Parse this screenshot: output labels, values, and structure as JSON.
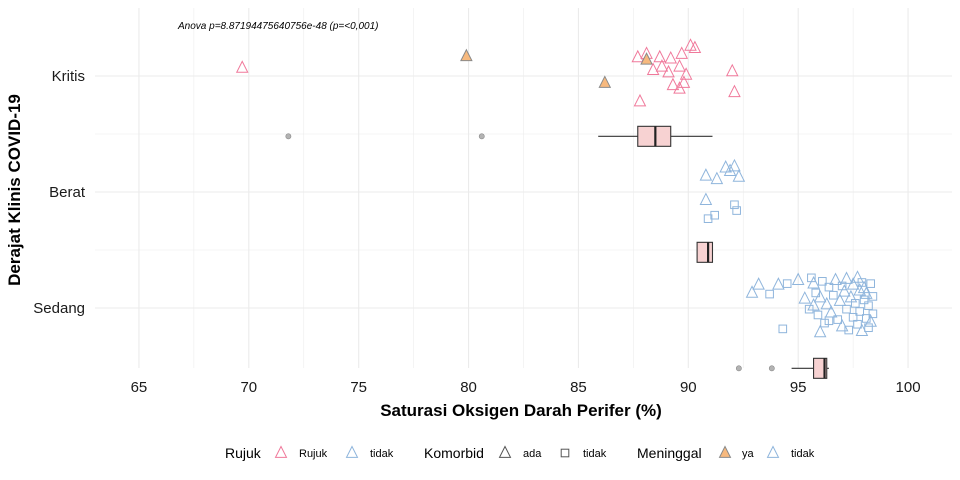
{
  "chart_data": {
    "type": "scatter",
    "xlabel": "Saturasi Oksigen Darah Perifer (%)",
    "ylabel": "Derajat Klinis COVID-19",
    "xlim": [
      63,
      102
    ],
    "x_ticks": [
      65,
      70,
      75,
      80,
      85,
      90,
      95,
      100
    ],
    "x_tick_labels": [
      "65",
      "70",
      "75",
      "80",
      "85",
      "90",
      "95",
      "100"
    ],
    "categories": [
      "Kritis",
      "Berat",
      "Sedang"
    ],
    "grid": true,
    "legend_position": "bottom",
    "annotation": "Anova p=8.87194475640756e-48 (p=<0,001)",
    "colors": {
      "rujuk": "#f0799b",
      "tidak_rujuk": "#8fb5dc",
      "ya_fill": "#f7b97e",
      "box_fill": "#f7d2d2",
      "outlier": "#b3b3b3",
      "grid": "#ebebeb"
    },
    "legend": {
      "rujuk": {
        "title": "Rujuk",
        "items": [
          "Rujuk",
          "tidak"
        ]
      },
      "komorbid": {
        "title": "Komorbid",
        "items": [
          "ada",
          "tidak"
        ]
      },
      "meninggal": {
        "title": "Meninggal",
        "items": [
          "ya",
          "tidak"
        ]
      }
    },
    "boxplots": [
      {
        "category": "Kritis",
        "min": 85.9,
        "q1": 87.7,
        "median": 88.5,
        "q3": 89.2,
        "max": 91.1,
        "outliers": [
          71.8,
          80.6
        ]
      },
      {
        "category": "Berat",
        "min": 90.4,
        "q1": 90.4,
        "median": 90.9,
        "q3": 91.1,
        "max": 91.1,
        "outliers": []
      },
      {
        "category": "Sedang",
        "min": 94.7,
        "q1": 95.7,
        "median": 96.2,
        "q3": 96.3,
        "max": 96.4,
        "outliers": [
          92.3,
          93.8
        ]
      }
    ],
    "points": [
      {
        "category": "Kritis",
        "x": 69.7,
        "offset": 0.07,
        "rujuk": "Rujuk",
        "komorbid": "ada",
        "meninggal": "tidak"
      },
      {
        "category": "Kritis",
        "x": 79.9,
        "offset": 0.17,
        "rujuk": "Rujuk",
        "komorbid": "ada",
        "meninggal": "ya"
      },
      {
        "category": "Kritis",
        "x": 86.2,
        "offset": -0.06,
        "rujuk": "Rujuk",
        "komorbid": "ada",
        "meninggal": "ya"
      },
      {
        "category": "Kritis",
        "x": 87.7,
        "offset": 0.16,
        "rujuk": "Rujuk",
        "komorbid": "ada",
        "meninggal": "tidak"
      },
      {
        "category": "Kritis",
        "x": 88.1,
        "offset": 0.19,
        "rujuk": "Rujuk",
        "komorbid": "ada",
        "meninggal": "tidak"
      },
      {
        "category": "Kritis",
        "x": 88.1,
        "offset": 0.14,
        "rujuk": "Rujuk",
        "komorbid": "ada",
        "meninggal": "ya"
      },
      {
        "category": "Kritis",
        "x": 88.7,
        "offset": 0.16,
        "rujuk": "Rujuk",
        "komorbid": "ada",
        "meninggal": "tidak"
      },
      {
        "category": "Kritis",
        "x": 89.2,
        "offset": 0.15,
        "rujuk": "Rujuk",
        "komorbid": "ada",
        "meninggal": "tidak"
      },
      {
        "category": "Kritis",
        "x": 89.7,
        "offset": 0.19,
        "rujuk": "Rujuk",
        "komorbid": "ada",
        "meninggal": "tidak"
      },
      {
        "category": "Kritis",
        "x": 90.1,
        "offset": 0.26,
        "rujuk": "Rujuk",
        "komorbid": "ada",
        "meninggal": "tidak"
      },
      {
        "category": "Kritis",
        "x": 90.3,
        "offset": 0.24,
        "rujuk": "Rujuk",
        "komorbid": "ada",
        "meninggal": "tidak"
      },
      {
        "category": "Kritis",
        "x": 88.4,
        "offset": 0.05,
        "rujuk": "Rujuk",
        "komorbid": "ada",
        "meninggal": "tidak"
      },
      {
        "category": "Kritis",
        "x": 88.8,
        "offset": 0.08,
        "rujuk": "Rujuk",
        "komorbid": "ada",
        "meninggal": "tidak"
      },
      {
        "category": "Kritis",
        "x": 89.1,
        "offset": 0.03,
        "rujuk": "Rujuk",
        "komorbid": "ada",
        "meninggal": "tidak"
      },
      {
        "category": "Kritis",
        "x": 89.6,
        "offset": 0.08,
        "rujuk": "Rujuk",
        "komorbid": "ada",
        "meninggal": "tidak"
      },
      {
        "category": "Kritis",
        "x": 89.9,
        "offset": 0.01,
        "rujuk": "Rujuk",
        "komorbid": "ada",
        "meninggal": "tidak"
      },
      {
        "category": "Kritis",
        "x": 89.3,
        "offset": -0.08,
        "rujuk": "Rujuk",
        "komorbid": "ada",
        "meninggal": "tidak"
      },
      {
        "category": "Kritis",
        "x": 89.6,
        "offset": -0.11,
        "rujuk": "Rujuk",
        "komorbid": "ada",
        "meninggal": "tidak"
      },
      {
        "category": "Kritis",
        "x": 89.8,
        "offset": -0.06,
        "rujuk": "Rujuk",
        "komorbid": "ada",
        "meninggal": "tidak"
      },
      {
        "category": "Kritis",
        "x": 87.8,
        "offset": -0.22,
        "rujuk": "Rujuk",
        "komorbid": "ada",
        "meninggal": "tidak"
      },
      {
        "category": "Kritis",
        "x": 92.0,
        "offset": 0.04,
        "rujuk": "Rujuk",
        "komorbid": "ada",
        "meninggal": "tidak"
      },
      {
        "category": "Kritis",
        "x": 92.1,
        "offset": -0.14,
        "rujuk": "Rujuk",
        "komorbid": "ada",
        "meninggal": "tidak"
      },
      {
        "category": "Berat",
        "x": 90.8,
        "offset": 0.14,
        "rujuk": "tidak",
        "komorbid": "ada",
        "meninggal": "tidak"
      },
      {
        "category": "Berat",
        "x": 91.3,
        "offset": 0.11,
        "rujuk": "tidak",
        "komorbid": "ada",
        "meninggal": "tidak"
      },
      {
        "category": "Berat",
        "x": 91.7,
        "offset": 0.21,
        "rujuk": "tidak",
        "komorbid": "ada",
        "meninggal": "tidak"
      },
      {
        "category": "Berat",
        "x": 91.9,
        "offset": 0.18,
        "rujuk": "tidak",
        "komorbid": "ada",
        "meninggal": "tidak"
      },
      {
        "category": "Berat",
        "x": 92.1,
        "offset": 0.22,
        "rujuk": "tidak",
        "komorbid": "ada",
        "meninggal": "tidak"
      },
      {
        "category": "Berat",
        "x": 92.3,
        "offset": 0.13,
        "rujuk": "tidak",
        "komorbid": "ada",
        "meninggal": "tidak"
      },
      {
        "category": "Berat",
        "x": 90.8,
        "offset": -0.07,
        "rujuk": "tidak",
        "komorbid": "ada",
        "meninggal": "tidak"
      },
      {
        "category": "Berat",
        "x": 90.9,
        "offset": -0.23,
        "rujuk": "tidak",
        "komorbid": "tidak",
        "meninggal": "tidak"
      },
      {
        "category": "Berat",
        "x": 91.2,
        "offset": -0.2,
        "rujuk": "tidak",
        "komorbid": "tidak",
        "meninggal": "tidak"
      },
      {
        "category": "Berat",
        "x": 92.1,
        "offset": -0.11,
        "rujuk": "tidak",
        "komorbid": "tidak",
        "meninggal": "tidak"
      },
      {
        "category": "Berat",
        "x": 92.2,
        "offset": -0.16,
        "rujuk": "tidak",
        "komorbid": "tidak",
        "meninggal": "tidak"
      },
      {
        "category": "Sedang",
        "x": 93.2,
        "offset": 0.2,
        "rujuk": "tidak",
        "komorbid": "ada",
        "meninggal": "tidak"
      },
      {
        "category": "Sedang",
        "x": 92.9,
        "offset": 0.13,
        "rujuk": "tidak",
        "komorbid": "ada",
        "meninggal": "tidak"
      },
      {
        "category": "Sedang",
        "x": 93.7,
        "offset": 0.12,
        "rujuk": "tidak",
        "komorbid": "tidak",
        "meninggal": "tidak"
      },
      {
        "category": "Sedang",
        "x": 94.1,
        "offset": 0.2,
        "rujuk": "tidak",
        "komorbid": "ada",
        "meninggal": "tidak"
      },
      {
        "category": "Sedang",
        "x": 94.5,
        "offset": 0.21,
        "rujuk": "tidak",
        "komorbid": "tidak",
        "meninggal": "tidak"
      },
      {
        "category": "Sedang",
        "x": 94.3,
        "offset": -0.18,
        "rujuk": "tidak",
        "komorbid": "tidak",
        "meninggal": "tidak"
      },
      {
        "category": "Sedang",
        "x": 95.0,
        "offset": 0.24,
        "rujuk": "tidak",
        "komorbid": "ada",
        "meninggal": "tidak"
      },
      {
        "category": "Sedang",
        "x": 95.3,
        "offset": 0.08,
        "rujuk": "tidak",
        "komorbid": "ada",
        "meninggal": "tidak"
      },
      {
        "category": "Sedang",
        "x": 95.6,
        "offset": 0.26,
        "rujuk": "tidak",
        "komorbid": "tidak",
        "meninggal": "tidak"
      },
      {
        "category": "Sedang",
        "x": 95.7,
        "offset": 0.21,
        "rujuk": "tidak",
        "komorbid": "ada",
        "meninggal": "tidak"
      },
      {
        "category": "Sedang",
        "x": 95.7,
        "offset": 0.02,
        "rujuk": "tidak",
        "komorbid": "ada",
        "meninggal": "tidak"
      },
      {
        "category": "Sedang",
        "x": 95.8,
        "offset": 0.13,
        "rujuk": "tidak",
        "komorbid": "tidak",
        "meninggal": "tidak"
      },
      {
        "category": "Sedang",
        "x": 95.9,
        "offset": -0.06,
        "rujuk": "tidak",
        "komorbid": "tidak",
        "meninggal": "tidak"
      },
      {
        "category": "Sedang",
        "x": 96.0,
        "offset": 0.09,
        "rujuk": "tidak",
        "komorbid": "ada",
        "meninggal": "tidak"
      },
      {
        "category": "Sedang",
        "x": 96.0,
        "offset": -0.21,
        "rujuk": "tidak",
        "komorbid": "ada",
        "meninggal": "tidak"
      },
      {
        "category": "Sedang",
        "x": 96.1,
        "offset": 0.23,
        "rujuk": "tidak",
        "komorbid": "tidak",
        "meninggal": "tidak"
      },
      {
        "category": "Sedang",
        "x": 96.2,
        "offset": -0.13,
        "rujuk": "tidak",
        "komorbid": "tidak",
        "meninggal": "tidak"
      },
      {
        "category": "Sedang",
        "x": 96.3,
        "offset": 0.03,
        "rujuk": "tidak",
        "komorbid": "ada",
        "meninggal": "tidak"
      },
      {
        "category": "Sedang",
        "x": 96.4,
        "offset": 0.18,
        "rujuk": "tidak",
        "komorbid": "tidak",
        "meninggal": "tidak"
      },
      {
        "category": "Sedang",
        "x": 96.5,
        "offset": -0.04,
        "rujuk": "tidak",
        "komorbid": "ada",
        "meninggal": "tidak"
      },
      {
        "category": "Sedang",
        "x": 96.6,
        "offset": 0.11,
        "rujuk": "tidak",
        "komorbid": "tidak",
        "meninggal": "tidak"
      },
      {
        "category": "Sedang",
        "x": 96.7,
        "offset": 0.24,
        "rujuk": "tidak",
        "komorbid": "ada",
        "meninggal": "tidak"
      },
      {
        "category": "Sedang",
        "x": 96.8,
        "offset": -0.1,
        "rujuk": "tidak",
        "komorbid": "tidak",
        "meninggal": "tidak"
      },
      {
        "category": "Sedang",
        "x": 96.9,
        "offset": 0.06,
        "rujuk": "tidak",
        "komorbid": "ada",
        "meninggal": "tidak"
      },
      {
        "category": "Sedang",
        "x": 97.0,
        "offset": 0.19,
        "rujuk": "tidak",
        "komorbid": "tidak",
        "meninggal": "tidak"
      },
      {
        "category": "Sedang",
        "x": 97.0,
        "offset": -0.16,
        "rujuk": "tidak",
        "komorbid": "ada",
        "meninggal": "tidak"
      },
      {
        "category": "Sedang",
        "x": 97.1,
        "offset": 0.14,
        "rujuk": "tidak",
        "komorbid": "ada",
        "meninggal": "tidak"
      },
      {
        "category": "Sedang",
        "x": 97.2,
        "offset": -0.01,
        "rujuk": "tidak",
        "komorbid": "tidak",
        "meninggal": "tidak"
      },
      {
        "category": "Sedang",
        "x": 97.2,
        "offset": 0.25,
        "rujuk": "tidak",
        "komorbid": "ada",
        "meninggal": "tidak"
      },
      {
        "category": "Sedang",
        "x": 97.3,
        "offset": -0.19,
        "rujuk": "tidak",
        "komorbid": "tidak",
        "meninggal": "tidak"
      },
      {
        "category": "Sedang",
        "x": 97.4,
        "offset": 0.09,
        "rujuk": "tidak",
        "komorbid": "ada",
        "meninggal": "tidak"
      },
      {
        "category": "Sedang",
        "x": 97.5,
        "offset": -0.08,
        "rujuk": "tidak",
        "komorbid": "tidak",
        "meninggal": "tidak"
      },
      {
        "category": "Sedang",
        "x": 97.5,
        "offset": 0.2,
        "rujuk": "tidak",
        "komorbid": "ada",
        "meninggal": "tidak"
      },
      {
        "category": "Sedang",
        "x": 97.6,
        "offset": 0.04,
        "rujuk": "tidak",
        "komorbid": "tidak",
        "meninggal": "tidak"
      },
      {
        "category": "Sedang",
        "x": 97.7,
        "offset": 0.26,
        "rujuk": "tidak",
        "komorbid": "ada",
        "meninggal": "tidak"
      },
      {
        "category": "Sedang",
        "x": 97.7,
        "offset": -0.14,
        "rujuk": "tidak",
        "komorbid": "tidak",
        "meninggal": "tidak"
      },
      {
        "category": "Sedang",
        "x": 97.8,
        "offset": 0.15,
        "rujuk": "tidak",
        "komorbid": "ada",
        "meninggal": "tidak"
      },
      {
        "category": "Sedang",
        "x": 97.8,
        "offset": -0.03,
        "rujuk": "tidak",
        "komorbid": "tidak",
        "meninggal": "tidak"
      },
      {
        "category": "Sedang",
        "x": 97.9,
        "offset": 0.22,
        "rujuk": "tidak",
        "komorbid": "tidak",
        "meninggal": "tidak"
      },
      {
        "category": "Sedang",
        "x": 97.9,
        "offset": -0.2,
        "rujuk": "tidak",
        "komorbid": "ada",
        "meninggal": "tidak"
      },
      {
        "category": "Sedang",
        "x": 98.0,
        "offset": 0.07,
        "rujuk": "tidak",
        "komorbid": "tidak",
        "meninggal": "tidak"
      },
      {
        "category": "Sedang",
        "x": 98.0,
        "offset": 0.17,
        "rujuk": "tidak",
        "komorbid": "ada",
        "meninggal": "tidak"
      },
      {
        "category": "Sedang",
        "x": 98.1,
        "offset": -0.09,
        "rujuk": "tidak",
        "komorbid": "tidak",
        "meninggal": "tidak"
      },
      {
        "category": "Sedang",
        "x": 98.1,
        "offset": 0.12,
        "rujuk": "tidak",
        "komorbid": "ada",
        "meninggal": "tidak"
      },
      {
        "category": "Sedang",
        "x": 98.2,
        "offset": -0.17,
        "rujuk": "tidak",
        "komorbid": "tidak",
        "meninggal": "tidak"
      },
      {
        "category": "Sedang",
        "x": 98.2,
        "offset": 0.02,
        "rujuk": "tidak",
        "komorbid": "tidak",
        "meninggal": "tidak"
      },
      {
        "category": "Sedang",
        "x": 98.3,
        "offset": 0.21,
        "rujuk": "tidak",
        "komorbid": "tidak",
        "meninggal": "tidak"
      },
      {
        "category": "Sedang",
        "x": 98.3,
        "offset": -0.12,
        "rujuk": "tidak",
        "komorbid": "ada",
        "meninggal": "tidak"
      },
      {
        "category": "Sedang",
        "x": 98.4,
        "offset": 0.1,
        "rujuk": "tidak",
        "komorbid": "tidak",
        "meninggal": "tidak"
      },
      {
        "category": "Sedang",
        "x": 98.4,
        "offset": -0.05,
        "rujuk": "tidak",
        "komorbid": "tidak",
        "meninggal": "tidak"
      },
      {
        "category": "Sedang",
        "x": 96.4,
        "offset": -0.11,
        "rujuk": "tidak",
        "komorbid": "tidak",
        "meninggal": "tidak"
      },
      {
        "category": "Sedang",
        "x": 95.5,
        "offset": -0.01,
        "rujuk": "tidak",
        "komorbid": "tidak",
        "meninggal": "tidak"
      }
    ]
  }
}
